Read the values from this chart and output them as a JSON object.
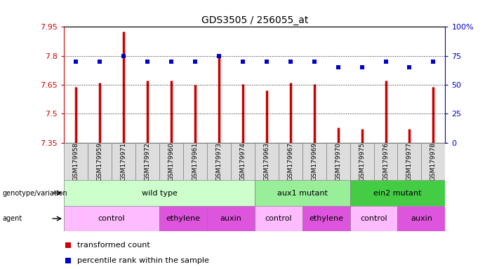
{
  "title": "GDS3505 / 256055_at",
  "samples": [
    "GSM179958",
    "GSM179959",
    "GSM179971",
    "GSM179972",
    "GSM179960",
    "GSM179961",
    "GSM179973",
    "GSM179974",
    "GSM179963",
    "GSM179967",
    "GSM179969",
    "GSM179970",
    "GSM179975",
    "GSM179976",
    "GSM179977",
    "GSM179978"
  ],
  "transformed_count": [
    7.64,
    7.66,
    7.925,
    7.67,
    7.67,
    7.65,
    7.805,
    7.655,
    7.62,
    7.66,
    7.655,
    7.43,
    7.42,
    7.67,
    7.42,
    7.64
  ],
  "percentile_rank": [
    70,
    70,
    75,
    70,
    70,
    70,
    75,
    70,
    70,
    70,
    70,
    65,
    65,
    70,
    65,
    70
  ],
  "ymin": 7.35,
  "ymax": 7.95,
  "yticks": [
    7.35,
    7.5,
    7.65,
    7.8,
    7.95
  ],
  "ytick_labels": [
    "7.35",
    "7.5",
    "7.65",
    "7.8",
    "7.95"
  ],
  "y2ticks": [
    0,
    25,
    50,
    75,
    100
  ],
  "y2tick_labels": [
    "0",
    "25",
    "50",
    "75",
    "100%"
  ],
  "bar_color": "#cc0000",
  "dot_color": "#0000cc",
  "left_axis_color": "#cc0000",
  "right_axis_color": "#0000cc",
  "genotype_groups": [
    {
      "label": "wild type",
      "start": 0,
      "end": 8,
      "color": "#ccffcc"
    },
    {
      "label": "aux1 mutant",
      "start": 8,
      "end": 12,
      "color": "#99ee99"
    },
    {
      "label": "ein2 mutant",
      "start": 12,
      "end": 16,
      "color": "#44cc44"
    }
  ],
  "agent_groups": [
    {
      "label": "control",
      "start": 0,
      "end": 4,
      "color": "#ffbbff"
    },
    {
      "label": "ethylene",
      "start": 4,
      "end": 6,
      "color": "#dd55dd"
    },
    {
      "label": "auxin",
      "start": 6,
      "end": 8,
      "color": "#dd55dd"
    },
    {
      "label": "control",
      "start": 8,
      "end": 10,
      "color": "#ffbbff"
    },
    {
      "label": "ethylene",
      "start": 10,
      "end": 12,
      "color": "#dd55dd"
    },
    {
      "label": "control",
      "start": 12,
      "end": 14,
      "color": "#ffbbff"
    },
    {
      "label": "auxin",
      "start": 14,
      "end": 16,
      "color": "#dd55dd"
    }
  ]
}
